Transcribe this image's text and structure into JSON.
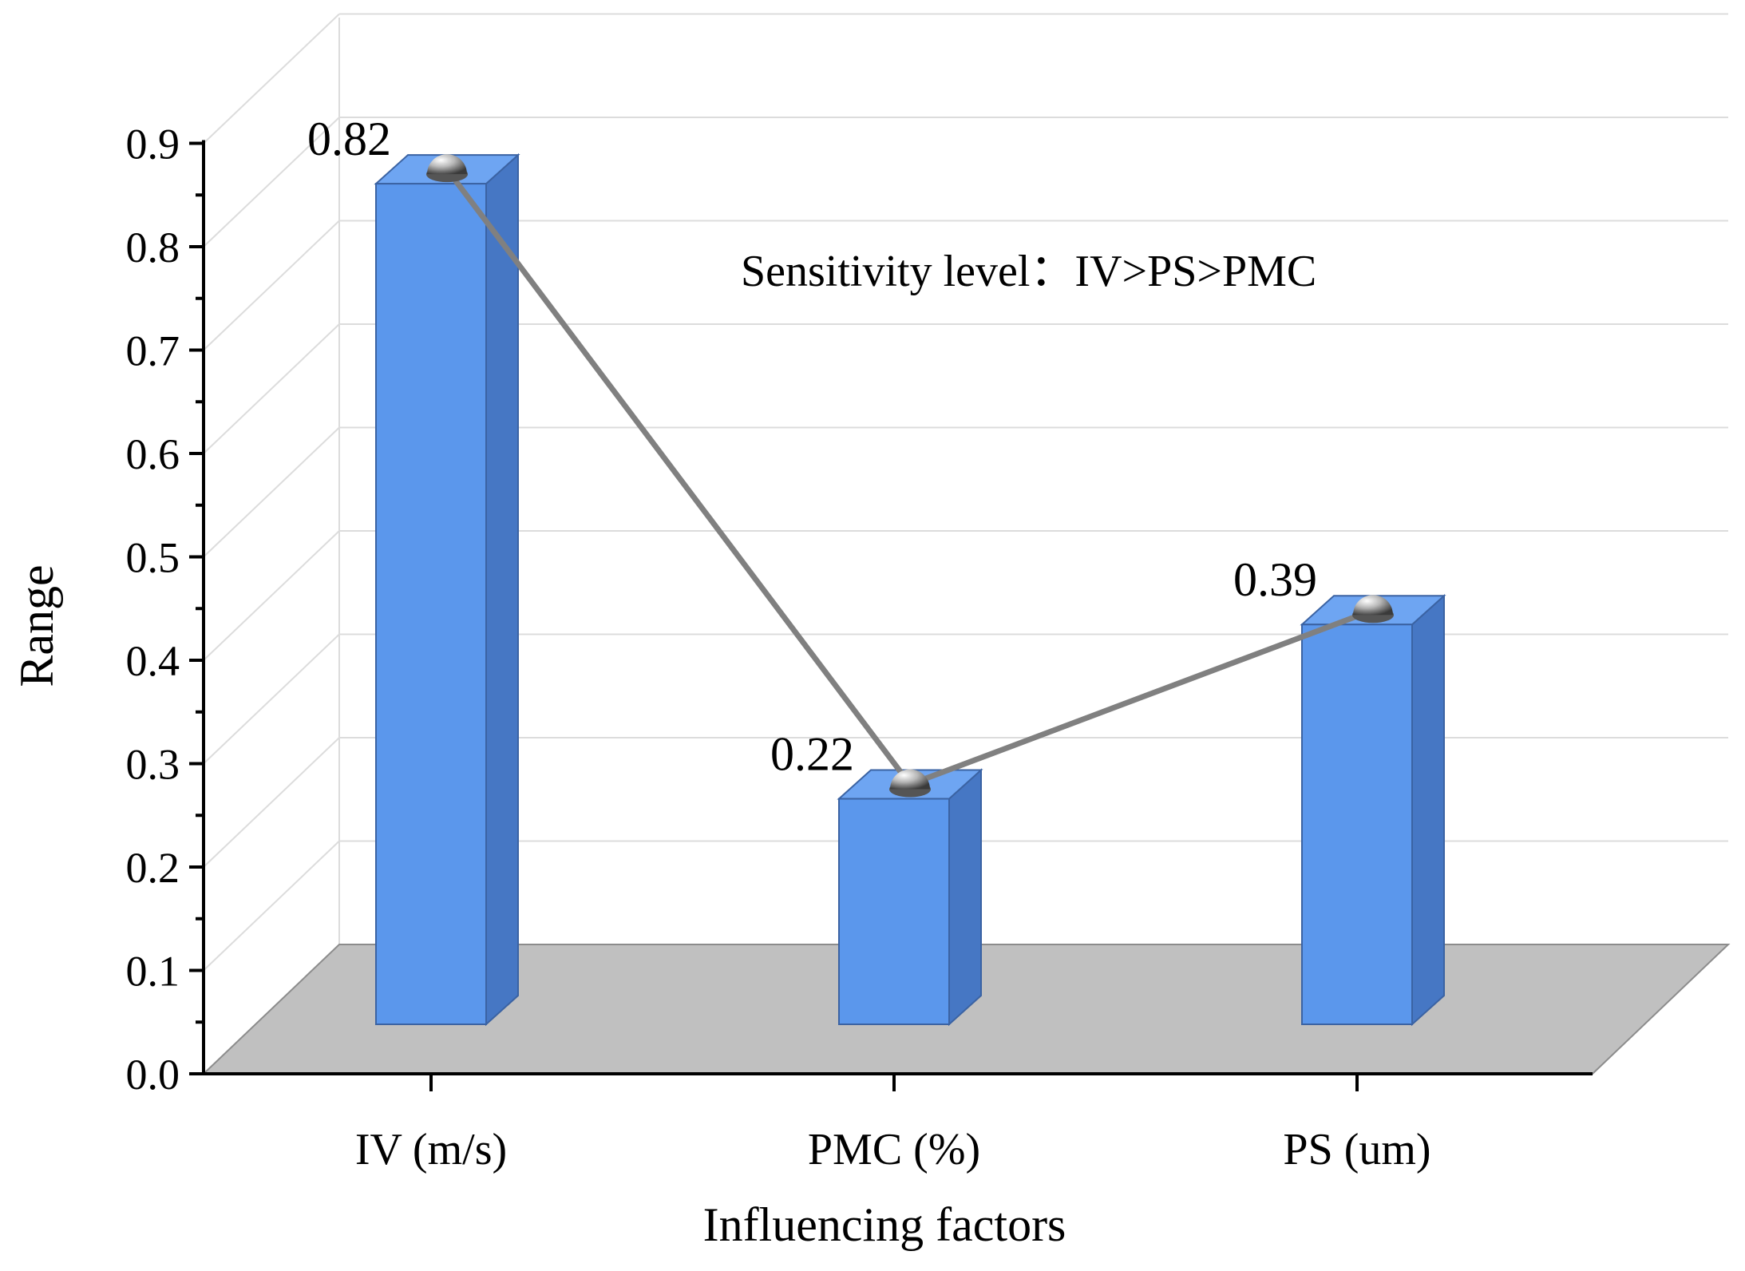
{
  "chart_data": {
    "type": "bar",
    "subtype": "3d-bar-with-line",
    "categories": [
      "IV (m/s)",
      "PMC (%)",
      "PS (um)"
    ],
    "values": [
      0.82,
      0.22,
      0.39
    ],
    "value_labels": [
      "0.82",
      "0.22",
      "0.39"
    ],
    "xlabel": "Influencing factors",
    "ylabel": "Range",
    "ylim": [
      0,
      0.9
    ],
    "yticks": [
      0.0,
      0.1,
      0.2,
      0.3,
      0.4,
      0.5,
      0.6,
      0.7,
      0.8,
      0.9
    ],
    "ytick_labels": [
      "0.0",
      "0.1",
      "0.2",
      "0.3",
      "0.4",
      "0.5",
      "0.6",
      "0.7",
      "0.8",
      "0.9"
    ],
    "grid": true,
    "annotation": "Sensitivity level：IV>PS>PMC",
    "colors": {
      "bar_front": "#5b97ec",
      "bar_side": "#4677c4",
      "bar_top": "#6ea5f2",
      "floor": "#c0c0c0",
      "line": "#808080",
      "grid": "#dcdcdc",
      "axis": "#000000"
    }
  }
}
